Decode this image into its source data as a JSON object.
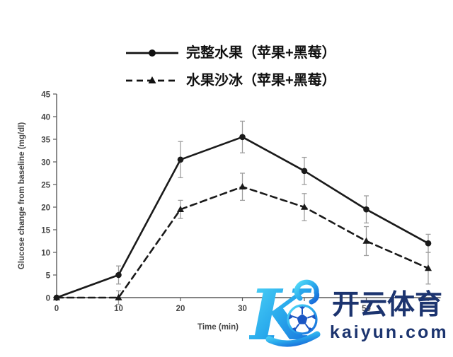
{
  "chart_data": {
    "type": "line",
    "title": "",
    "xlabel": "Time (min)",
    "ylabel": "Glucose change from baseline (mg/dl)",
    "x": [
      0,
      10,
      20,
      30,
      40,
      50,
      60
    ],
    "x_tick_labels": [
      "0",
      "10",
      "20",
      "30",
      "40",
      "50"
    ],
    "y_ticks": [
      0,
      5,
      10,
      15,
      20,
      25,
      30,
      35,
      40,
      45
    ],
    "ylim": [
      0,
      45
    ],
    "xlim": [
      0,
      62
    ],
    "grid": false,
    "legend_position": "top-center",
    "series": [
      {
        "name": "完整水果（苹果+黑莓）",
        "line_style": "solid",
        "marker": "circle",
        "color": "#1a1a1a",
        "values": [
          0,
          5,
          30.5,
          35.5,
          28,
          19.5,
          12
        ],
        "errors": [
          0,
          2,
          4,
          3.5,
          3,
          3,
          2
        ]
      },
      {
        "name": "水果沙冰（苹果+黑莓）",
        "line_style": "dashed",
        "marker": "triangle",
        "color": "#1a1a1a",
        "values": [
          0,
          0,
          19.5,
          24.5,
          20,
          12.5,
          6.5
        ],
        "errors": [
          0,
          1.5,
          2,
          3,
          3,
          3.2,
          3.5
        ]
      }
    ],
    "error_bar_color": "#9e9e9e",
    "axis_color": "#5a5a5a",
    "text_color": "#474747"
  },
  "watermark": {
    "logo_letter": "K",
    "icon": "football-icon",
    "brand_cn": "开云体育",
    "brand_domain": "kaiyun.com",
    "text_color": "#1c346f",
    "gradient_start": "#53dbf8",
    "gradient_end": "#1565d8"
  }
}
